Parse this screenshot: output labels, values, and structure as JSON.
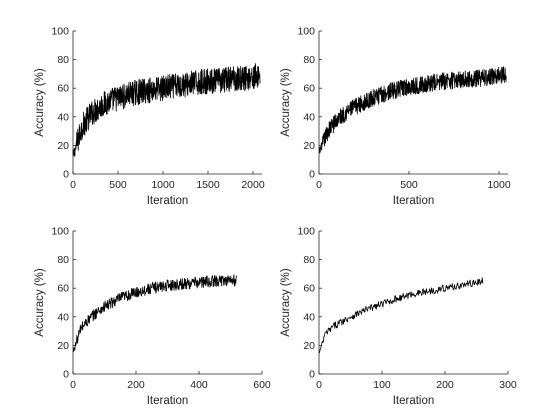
{
  "chart_data": [
    {
      "type": "line",
      "xlabel": "Iteration",
      "ylabel": "Accuracy (%)",
      "xlim": [
        0,
        2100
      ],
      "ylim": [
        0,
        100
      ],
      "xticks": [
        0,
        500,
        1000,
        1500,
        2000
      ],
      "yticks": [
        0,
        20,
        40,
        60,
        80,
        100
      ],
      "grid": false,
      "series": [
        {
          "x": [
            0,
            100,
            200,
            300,
            400,
            500,
            600,
            700,
            800,
            900,
            1000,
            1100,
            1200,
            1300,
            1400,
            1500,
            1600,
            1700,
            1800,
            1900,
            2000,
            2080
          ],
          "y": [
            12,
            33,
            42,
            47,
            51,
            53,
            55,
            57,
            58,
            59,
            60,
            61,
            62,
            63,
            64,
            65,
            65,
            66,
            67,
            67,
            68,
            69
          ],
          "noise": 9
        }
      ]
    },
    {
      "type": "line",
      "xlabel": "Iteration",
      "ylabel": "Accuracy (%)",
      "xlim": [
        0,
        1050
      ],
      "ylim": [
        0,
        100
      ],
      "xticks": [
        0,
        500,
        1000
      ],
      "yticks": [
        0,
        20,
        40,
        60,
        80,
        100
      ],
      "grid": false,
      "series": [
        {
          "x": [
            0,
            50,
            100,
            150,
            200,
            250,
            300,
            400,
            500,
            600,
            700,
            800,
            900,
            1000,
            1040
          ],
          "y": [
            15,
            30,
            38,
            43,
            47,
            50,
            53,
            58,
            61,
            63,
            65,
            66,
            67,
            69,
            70
          ],
          "noise": 6
        }
      ]
    },
    {
      "type": "line",
      "xlabel": "Iteration",
      "ylabel": "Accuracy (%)",
      "xlim": [
        0,
        600
      ],
      "ylim": [
        0,
        100
      ],
      "xticks": [
        0,
        200,
        400,
        600
      ],
      "yticks": [
        0,
        20,
        40,
        60,
        80,
        100
      ],
      "grid": false,
      "series": [
        {
          "x": [
            0,
            25,
            50,
            75,
            100,
            150,
            200,
            250,
            300,
            350,
            400,
            450,
            500,
            520
          ],
          "y": [
            15,
            32,
            38,
            43,
            47,
            53,
            57,
            60,
            62,
            63,
            64,
            65,
            66,
            65
          ],
          "noise": 4
        }
      ]
    },
    {
      "type": "line",
      "xlabel": "Iteration",
      "ylabel": "Accuracy (%)",
      "xlim": [
        0,
        300
      ],
      "ylim": [
        0,
        100
      ],
      "xticks": [
        0,
        100,
        200,
        300
      ],
      "yticks": [
        0,
        20,
        40,
        60,
        80,
        100
      ],
      "grid": false,
      "series": [
        {
          "x": [
            0,
            10,
            25,
            50,
            75,
            100,
            125,
            150,
            175,
            200,
            225,
            250,
            260
          ],
          "y": [
            14,
            28,
            34,
            40,
            45,
            49,
            53,
            56,
            58,
            60,
            62,
            64,
            65
          ],
          "noise": 2.5
        }
      ]
    }
  ]
}
